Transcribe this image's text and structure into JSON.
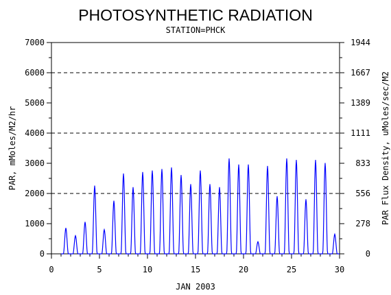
{
  "chart_data": {
    "type": "line",
    "title": "PHOTOSYNTHETIC RADIATION",
    "subtitle": "STATION=PHCK",
    "xlabel": "JAN 2003",
    "ylabel": "PAR, mMoles/M2/hr",
    "y2label": "PAR Flux Density, uMoles/sec/M2",
    "xlim": [
      0,
      30
    ],
    "ylim": [
      0,
      7000
    ],
    "x_ticks": [
      "0",
      "5",
      "10",
      "15",
      "20",
      "25",
      "30"
    ],
    "y_ticks": [
      "0",
      "1000",
      "2000",
      "3000",
      "4000",
      "5000",
      "6000",
      "7000"
    ],
    "y2_ticks": [
      "0",
      "278",
      "556",
      "833",
      "1111",
      "1389",
      "1667",
      "1944"
    ],
    "grid": "dashed horizontal at 2000, 4000, 6000",
    "line_color": "#0000ff",
    "series": [
      {
        "x": [
          1.5,
          2.5,
          3.5,
          4.5,
          5.5,
          6.5,
          7.5,
          8.5,
          9.5,
          10.5,
          11.5,
          12.5,
          13.5,
          14.5,
          15.5,
          16.5,
          17.5,
          18.5,
          19.5,
          20.5,
          21.5,
          22.5,
          23.5,
          24.5,
          25.5,
          26.5,
          27.5,
          28.5,
          29.5
        ],
        "values": [
          850,
          600,
          1050,
          2250,
          800,
          1750,
          2650,
          2200,
          2700,
          2750,
          2800,
          2850,
          2600,
          2300,
          2750,
          2300,
          2200,
          3150,
          2950,
          2950,
          400,
          2900,
          1900,
          3150,
          3100,
          1800,
          3100,
          3000,
          650
        ]
      }
    ]
  }
}
